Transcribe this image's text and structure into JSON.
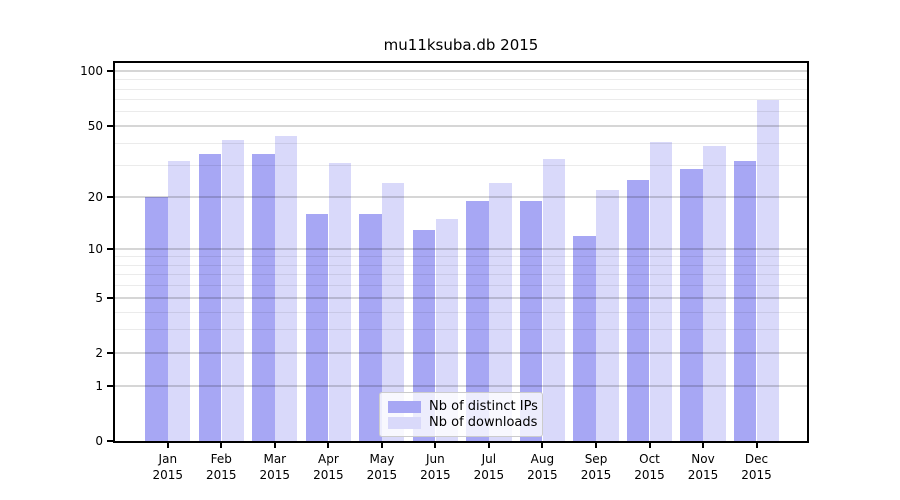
{
  "title": "mu11ksuba.db 2015",
  "chart_data": {
    "type": "bar",
    "title": "mu11ksuba.db 2015",
    "categories": [
      "Jan",
      "Feb",
      "Mar",
      "Apr",
      "May",
      "Jun",
      "Jul",
      "Aug",
      "Sep",
      "Oct",
      "Nov",
      "Dec"
    ],
    "category_year": "2015",
    "series": [
      {
        "name": "Nb of distinct IPs",
        "color": "#a7a7f4",
        "values": [
          20,
          35,
          35,
          16,
          16,
          13,
          19,
          19,
          12,
          25,
          29,
          32
        ]
      },
      {
        "name": "Nb of downloads",
        "color": "#d9d9fa",
        "values": [
          32,
          42,
          44,
          31,
          24,
          15,
          24,
          33,
          22,
          41,
          39,
          70
        ]
      }
    ],
    "xlabel": "",
    "ylabel": "",
    "yscale": "log1p",
    "yticks": [
      0,
      1,
      2,
      5,
      10,
      20,
      50,
      100
    ],
    "minor_gridlines": [
      3,
      4,
      6,
      7,
      8,
      9,
      30,
      40,
      60,
      70,
      80,
      90
    ],
    "ylim": [
      0,
      111
    ],
    "grid": "on",
    "legend_position": "bottom-center"
  }
}
